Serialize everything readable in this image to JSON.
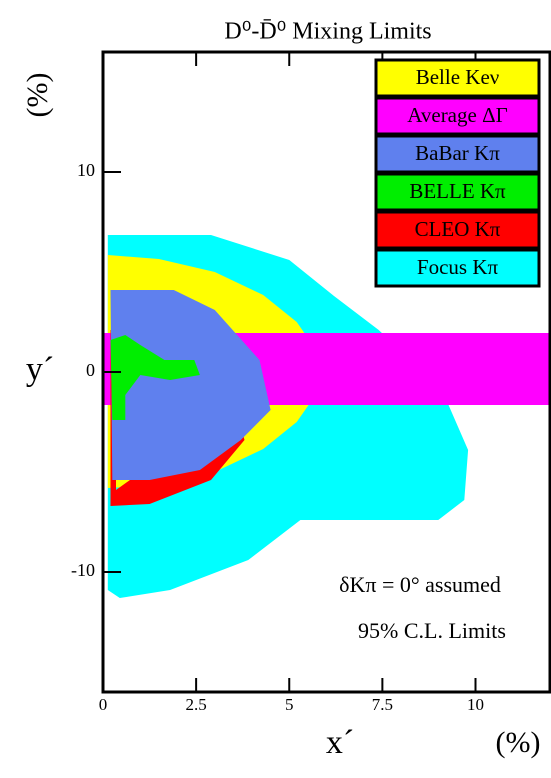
{
  "chart_data": {
    "type": "region",
    "title": "D⁰-D̄⁰ Mixing Limits",
    "x_label": "x´",
    "x_unit": "(%)",
    "y_label": "y´",
    "y_unit": "(%)",
    "annotations": [
      "δKπ = 0° assumed",
      "95% C.L. Limits"
    ],
    "xlim": [
      0,
      12
    ],
    "ylim": [
      -16,
      16
    ],
    "xticks": [
      0,
      2.5,
      5,
      7.5,
      10
    ],
    "yticks": [
      -10,
      0,
      10
    ],
    "legend": "upper right",
    "series": [
      {
        "name": "Belle Keν",
        "color": "#ffff00",
        "x": [
          0.13,
          1.5,
          3.0,
          4.3,
          5.2,
          5.65,
          5.75,
          5.65,
          5.2,
          4.3,
          3.0,
          1.5,
          0.13
        ],
        "y": [
          5.85,
          5.65,
          5.0,
          3.85,
          2.5,
          1.3,
          0,
          -1.3,
          -2.5,
          -3.85,
          -5.0,
          -5.65,
          -5.8
        ]
      },
      {
        "name": "Average ΔΓ",
        "color": "#ff00ff",
        "x": [
          0.0,
          12,
          12,
          0.0
        ],
        "y": [
          1.95,
          1.95,
          -1.65,
          -1.65
        ]
      },
      {
        "name": "BaBar Kπ",
        "color": "#5f80ee",
        "x": [
          0.2,
          1.9,
          3.0,
          4.2,
          4.5,
          3.7,
          2.6,
          1.25,
          0.25
        ],
        "y": [
          4.1,
          4.1,
          3.1,
          0.6,
          -1.9,
          -3.4,
          -4.9,
          -5.4,
          -5.4
        ]
      },
      {
        "name": "BELLE Kπ",
        "color": "#00ee00",
        "x": [
          0.2,
          0.6,
          1.0,
          1.65,
          2.45,
          2.6,
          1.8,
          1.0,
          0.6,
          0.6,
          0.25
        ],
        "y": [
          1.6,
          1.85,
          1.35,
          0.6,
          0.6,
          -0.15,
          -0.4,
          -0.15,
          -1.15,
          -2.4,
          -2.4
        ]
      },
      {
        "name": "CLEO Kπ",
        "color": "#ff0000",
        "x": [
          0.2,
          1.25,
          2.3,
          2.7,
          3.5,
          3.8,
          2.9,
          1.25,
          0.2,
          null,
          0.35,
          1.25,
          2.1,
          2.45,
          3.2,
          3.45,
          2.75,
          0.35
        ],
        "y": [
          2.1,
          2.35,
          1.6,
          0.1,
          -1.4,
          -3.4,
          -5.4,
          -6.6,
          -6.7,
          null,
          1.8,
          2.05,
          1.4,
          -0.1,
          -1.5,
          -2.5,
          -2.7,
          -5.9
        ]
      },
      {
        "name": "Focus Kπ",
        "color": "#00ffff",
        "x": [
          0.13,
          2.9,
          5.0,
          6.2,
          7.4,
          9.1,
          9.8,
          9.7,
          9.0,
          5.3,
          3.9,
          1.8,
          0.45,
          0.13
        ],
        "y": [
          6.85,
          6.85,
          5.6,
          3.8,
          2.1,
          -0.9,
          -3.9,
          -6.4,
          -7.4,
          -7.4,
          -9.4,
          -10.9,
          -11.3,
          -10.9
        ]
      }
    ]
  }
}
